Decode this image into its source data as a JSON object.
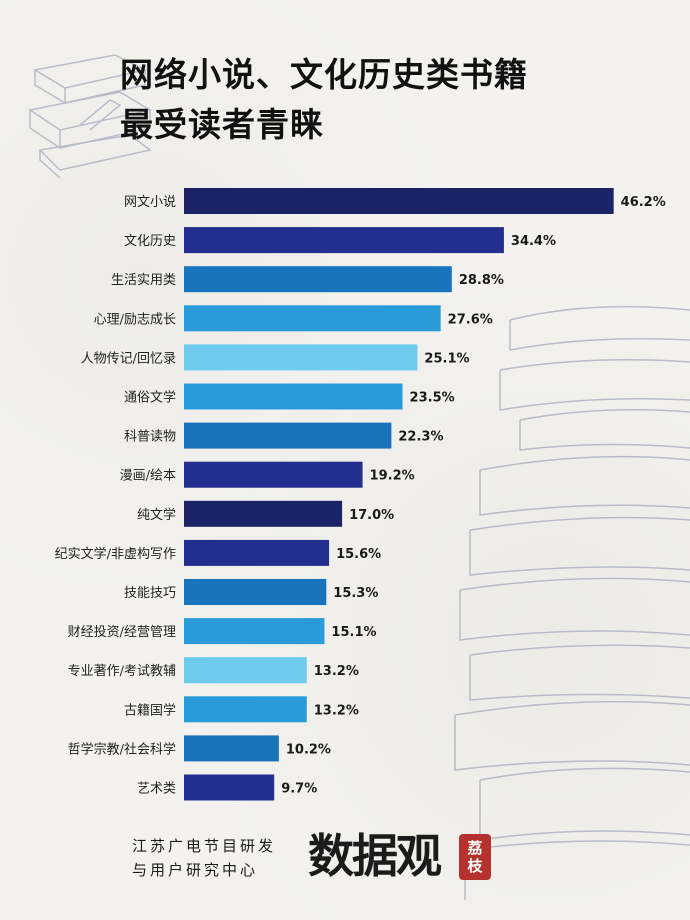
{
  "title": {
    "line1": "网络小说、文化历史类书籍",
    "line2": "最受读者青睐"
  },
  "footer": {
    "org_line1": "江苏广电节目研发",
    "org_line2": "与用户研究中心",
    "brand": "数据观",
    "seal_line1": "荔",
    "seal_line2": "枝"
  },
  "chart_data": {
    "type": "bar",
    "orientation": "horizontal",
    "categories": [
      "网文小说",
      "文化历史",
      "生活实用类",
      "心理/励志成长",
      "人物传记/回忆录",
      "通俗文学",
      "科普读物",
      "漫画/绘本",
      "纯文学",
      "纪实文学/非虚构写作",
      "技能技巧",
      "财经投资/经营管理",
      "专业著作/考试教辅",
      "古籍国学",
      "哲学宗教/社会科学",
      "艺术类"
    ],
    "values": [
      46.2,
      34.4,
      28.8,
      27.6,
      25.1,
      23.5,
      22.3,
      19.2,
      17.0,
      15.6,
      15.3,
      15.1,
      13.2,
      13.2,
      10.2,
      9.7
    ],
    "value_labels": [
      "46.2%",
      "34.4%",
      "28.8%",
      "27.6%",
      "25.1%",
      "23.5%",
      "22.3%",
      "19.2%",
      "17.0%",
      "15.6%",
      "15.3%",
      "15.1%",
      "13.2%",
      "13.2%",
      "10.2%",
      "9.7%"
    ],
    "bar_colors": [
      "#1b2366",
      "#232f8e",
      "#1774bd",
      "#2a9bd9",
      "#6fcbec",
      "#2a9bd9",
      "#1a72ba",
      "#232f8e",
      "#1b2366",
      "#232f8e",
      "#1774bd",
      "#2a9bd9",
      "#6fcbec",
      "#2a9bd9",
      "#1a72ba",
      "#232f8e"
    ],
    "grid": false,
    "legend": "none"
  },
  "colors": {
    "background": "#f3f2ee",
    "title_text": "#111111",
    "seal": "#b5312e",
    "book_sketch": "#b9bcc8"
  }
}
